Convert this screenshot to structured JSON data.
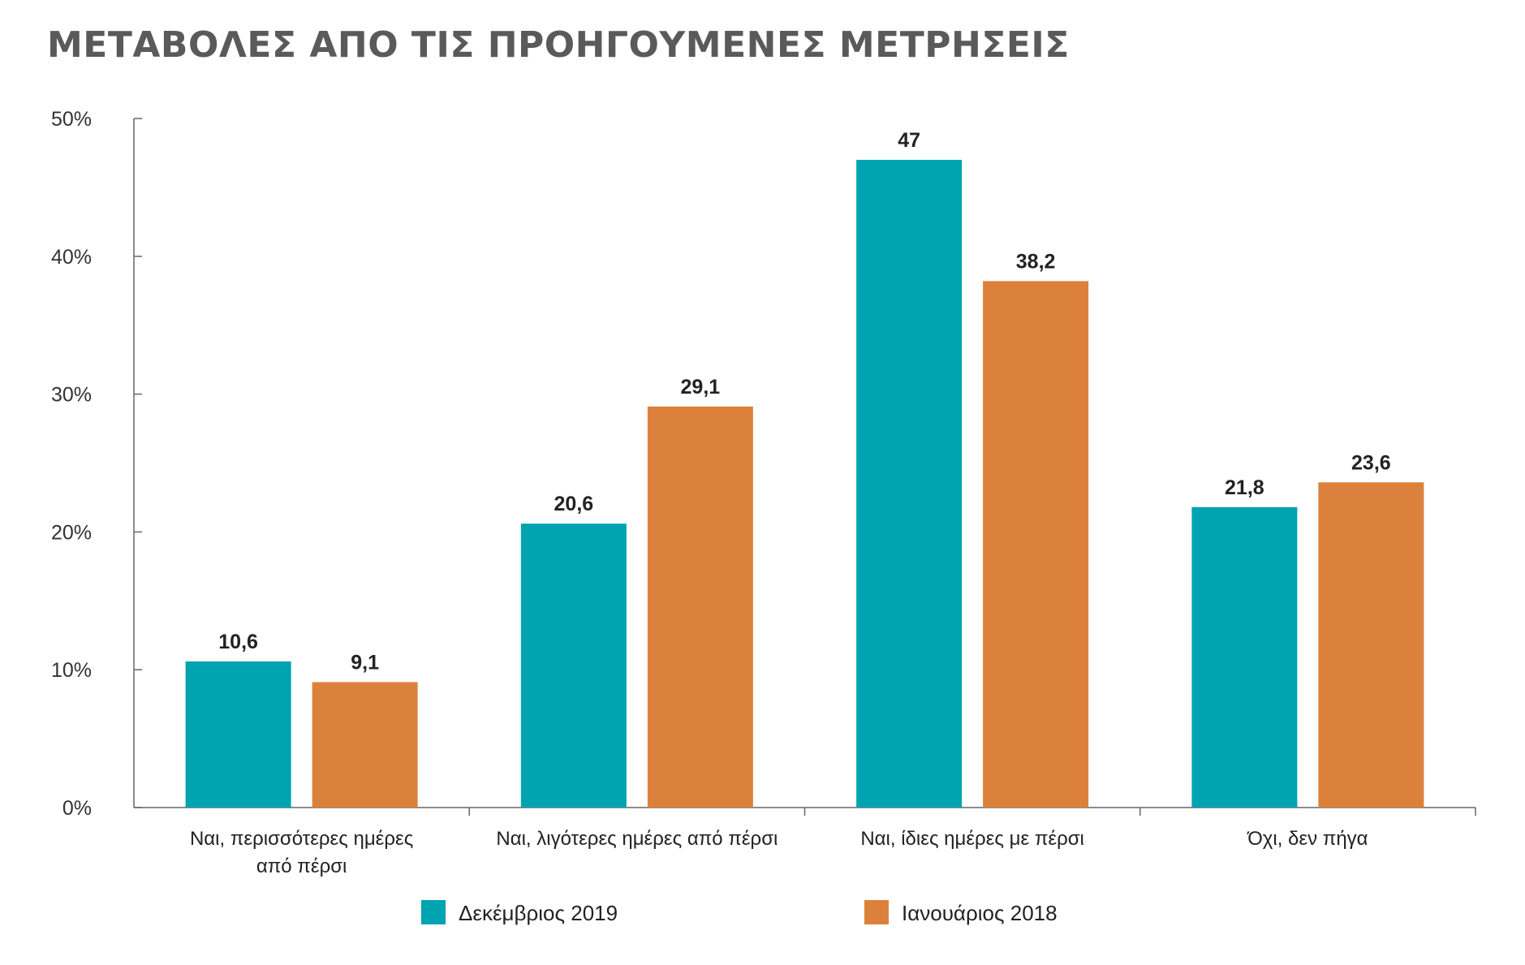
{
  "title": "ΜΕΤΑΒΟΛΕΣ ΑΠΟ ΤΙΣ ΠΡΟΗΓΟΥΜΕΝΕΣ ΜΕΤΡΗΣΕΙΣ",
  "chart_data": {
    "type": "bar",
    "title": "ΜΕΤΑΒΟΛΕΣ ΑΠΟ ΤΙΣ ΠΡΟΗΓΟΥΜΕΝΕΣ ΜΕΤΡΗΣΕΙΣ",
    "categories": [
      [
        "Ναι, περισσότερες ημέρες",
        "από πέρσι"
      ],
      [
        "Ναι, λιγότερες ημέρες από πέρσι"
      ],
      [
        "Ναι, ίδιες ημέρες με πέρσι"
      ],
      [
        "Όχι, δεν πήγα"
      ]
    ],
    "series": [
      {
        "name": "Δεκέμβριος 2019",
        "color": "#00a3b0",
        "values": [
          10.6,
          20.6,
          47,
          21.8
        ],
        "labels": [
          "10,6",
          "20,6",
          "47",
          "21,8"
        ]
      },
      {
        "name": "Ιανουάριος 2018",
        "color": "#dc813b",
        "values": [
          9.1,
          29.1,
          38.2,
          23.6
        ],
        "labels": [
          "9,1",
          "29,1",
          "38,2",
          "23,6"
        ]
      }
    ],
    "ylim": [
      0,
      50
    ],
    "yticks": [
      0,
      10,
      20,
      30,
      40,
      50
    ],
    "ytick_labels": [
      "0%",
      "10%",
      "20%",
      "30%",
      "40%",
      "50%"
    ],
    "xlabel": "",
    "ylabel": "",
    "grid": false,
    "legend_position": "bottom"
  }
}
